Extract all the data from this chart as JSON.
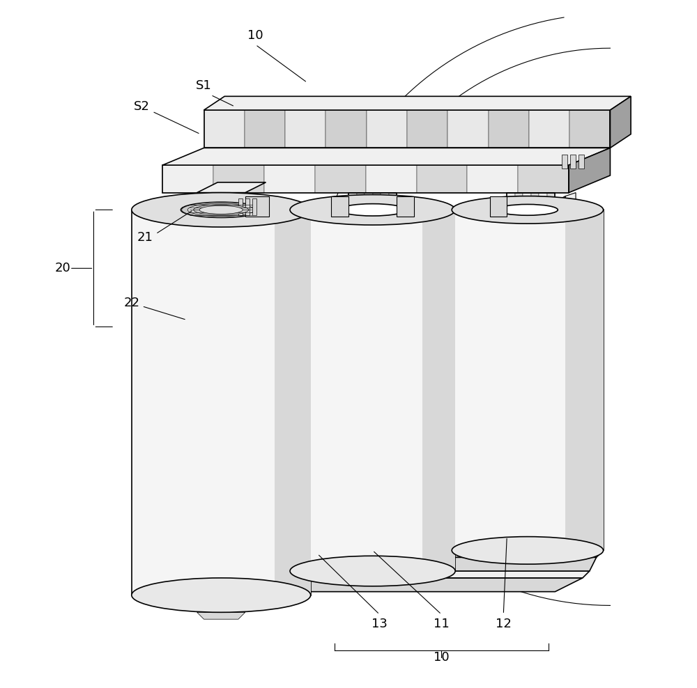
{
  "title": "",
  "background_color": "#ffffff",
  "line_color": "#000000",
  "light_fill": "#f0f0f0",
  "medium_fill": "#d8d8d8",
  "dark_fill": "#a0a0a0",
  "very_light": "#f8f8f8",
  "figsize": [
    10,
    9.88
  ],
  "dpi": 100
}
